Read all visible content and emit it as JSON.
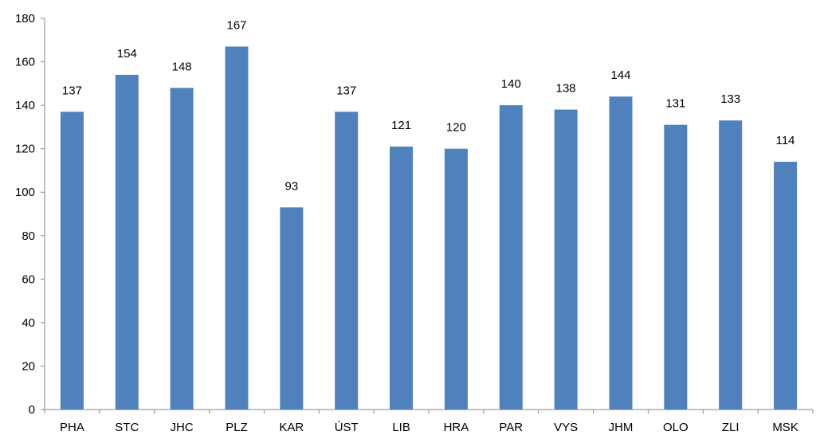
{
  "chart_data": {
    "type": "bar",
    "categories": [
      "PHA",
      "STC",
      "JHC",
      "PLZ",
      "KAR",
      "ÚST",
      "LIB",
      "HRA",
      "PAR",
      "VYS",
      "JHM",
      "OLO",
      "ZLI",
      "MSK"
    ],
    "values": [
      137,
      154,
      148,
      167,
      93,
      137,
      121,
      120,
      140,
      138,
      144,
      131,
      133,
      114
    ],
    "data_labels": [
      "137",
      "154",
      "148",
      "167",
      "93",
      "137",
      "121",
      "120",
      "140",
      "138",
      "144",
      "131",
      "133",
      "114"
    ],
    "ylim": [
      0,
      180
    ],
    "yticks": [
      0,
      20,
      40,
      60,
      80,
      100,
      120,
      140,
      160,
      180
    ],
    "ytick_labels": [
      "0",
      "20",
      "40",
      "60",
      "80",
      "100",
      "120",
      "140",
      "160",
      "180"
    ],
    "title": "",
    "xlabel": "",
    "ylabel": "",
    "grid": false,
    "legend": "none",
    "colors": {
      "bar": "#4f81bd",
      "axis": "#868686",
      "text": "#000000"
    }
  }
}
